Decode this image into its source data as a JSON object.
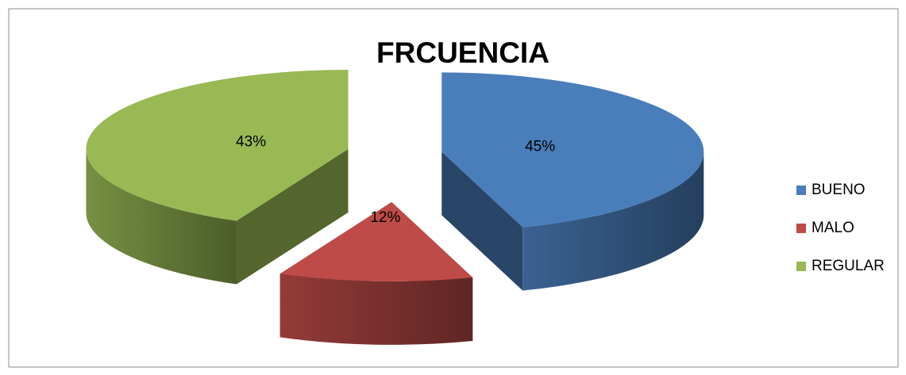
{
  "chart_data": {
    "type": "pie3d",
    "title": "FRCUENCIA",
    "categories": [
      "BUENO",
      "MALO",
      "REGULAR"
    ],
    "values": [
      45,
      12,
      43
    ],
    "value_labels": [
      "45%",
      "12%",
      "43%"
    ],
    "colors": [
      "#4a7ebb",
      "#be4b48",
      "#98b954"
    ],
    "legend": "right",
    "exploded": true
  }
}
